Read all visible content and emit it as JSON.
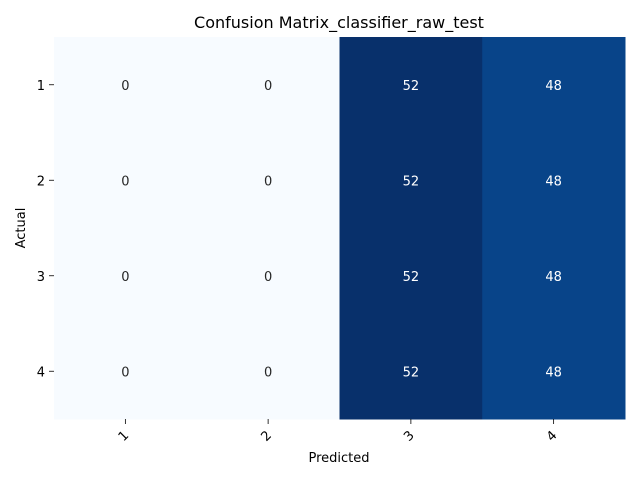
{
  "chart_data": {
    "type": "heatmap",
    "title": "Confusion Matrix_classifier_raw_test",
    "xlabel": "Predicted",
    "ylabel": "Actual",
    "x_categories": [
      "1",
      "2",
      "3",
      "4"
    ],
    "y_categories": [
      "1",
      "2",
      "3",
      "4"
    ],
    "matrix": [
      [
        0,
        0,
        52,
        48
      ],
      [
        0,
        0,
        52,
        48
      ],
      [
        0,
        0,
        52,
        48
      ],
      [
        0,
        0,
        52,
        48
      ]
    ],
    "colorscale": "Blues",
    "colors": {
      "low": "#f7fbff",
      "high": "#08306b",
      "value_48": "#08468b",
      "text_dark": "#262626",
      "text_light": "#ffffff"
    },
    "x_tick_rotation": "45deg",
    "colorbar": false
  }
}
